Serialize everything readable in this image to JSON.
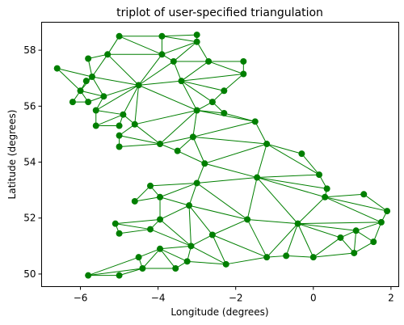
{
  "chart_data": {
    "type": "scatter",
    "title": "triplot of user-specified triangulation",
    "xlabel": "Longitude (degrees)",
    "ylabel": "Latitude (degrees)",
    "xlim": [
      -7.0,
      2.2
    ],
    "ylim": [
      49.55,
      59.0
    ],
    "xticks": [
      -6,
      -4,
      -2,
      0,
      2
    ],
    "xtick_labels": [
      "−6",
      "−4",
      "−2",
      "0",
      "2"
    ],
    "yticks": [
      50,
      52,
      54,
      56,
      58
    ],
    "ytick_labels": [
      "50",
      "52",
      "54",
      "56",
      "58"
    ],
    "grid": false,
    "colors": {
      "mesh": "#007f00"
    },
    "points": [
      {
        "x": -5.0,
        "y": 58.5
      },
      {
        "x": -3.9,
        "y": 58.5
      },
      {
        "x": -3.0,
        "y": 58.55
      },
      {
        "x": -3.0,
        "y": 58.3
      },
      {
        "x": -5.3,
        "y": 57.85
      },
      {
        "x": -3.9,
        "y": 57.85
      },
      {
        "x": -5.8,
        "y": 57.7
      },
      {
        "x": -3.6,
        "y": 57.6
      },
      {
        "x": -2.7,
        "y": 57.6
      },
      {
        "x": -1.8,
        "y": 57.6
      },
      {
        "x": -6.6,
        "y": 57.35
      },
      {
        "x": -5.7,
        "y": 57.05
      },
      {
        "x": -1.8,
        "y": 57.15
      },
      {
        "x": -3.4,
        "y": 56.9
      },
      {
        "x": -5.85,
        "y": 56.9
      },
      {
        "x": -4.5,
        "y": 56.75
      },
      {
        "x": -6.0,
        "y": 56.55
      },
      {
        "x": -2.3,
        "y": 56.55
      },
      {
        "x": -5.4,
        "y": 56.35
      },
      {
        "x": -6.2,
        "y": 56.15
      },
      {
        "x": -5.8,
        "y": 56.15
      },
      {
        "x": -2.6,
        "y": 56.15
      },
      {
        "x": -5.6,
        "y": 55.85
      },
      {
        "x": -3.0,
        "y": 55.85
      },
      {
        "x": -4.9,
        "y": 55.7
      },
      {
        "x": -2.3,
        "y": 55.75
      },
      {
        "x": -1.5,
        "y": 55.45
      },
      {
        "x": -5.6,
        "y": 55.3
      },
      {
        "x": -5.0,
        "y": 55.3
      },
      {
        "x": -4.6,
        "y": 55.35
      },
      {
        "x": -5.0,
        "y": 54.95
      },
      {
        "x": -3.1,
        "y": 54.9
      },
      {
        "x": -3.95,
        "y": 54.65
      },
      {
        "x": -1.2,
        "y": 54.65
      },
      {
        "x": -5.0,
        "y": 54.55
      },
      {
        "x": -3.5,
        "y": 54.4
      },
      {
        "x": -0.3,
        "y": 54.3
      },
      {
        "x": -2.8,
        "y": 53.95
      },
      {
        "x": 0.15,
        "y": 53.55
      },
      {
        "x": -1.45,
        "y": 53.45
      },
      {
        "x": -3.0,
        "y": 53.25
      },
      {
        "x": -4.2,
        "y": 53.15
      },
      {
        "x": 0.35,
        "y": 53.05
      },
      {
        "x": 1.9,
        "y": 52.25
      },
      {
        "x": 1.3,
        "y": 52.85
      },
      {
        "x": -3.95,
        "y": 52.75
      },
      {
        "x": 0.3,
        "y": 52.75
      },
      {
        "x": -4.6,
        "y": 52.6
      },
      {
        "x": -3.2,
        "y": 52.45
      },
      {
        "x": -3.95,
        "y": 51.95
      },
      {
        "x": -1.7,
        "y": 51.95
      },
      {
        "x": 1.75,
        "y": 51.85
      },
      {
        "x": -5.1,
        "y": 51.8
      },
      {
        "x": -0.4,
        "y": 51.8
      },
      {
        "x": 1.1,
        "y": 51.55
      },
      {
        "x": -4.2,
        "y": 51.6
      },
      {
        "x": -5.0,
        "y": 51.45
      },
      {
        "x": -2.6,
        "y": 51.4
      },
      {
        "x": 0.7,
        "y": 51.3
      },
      {
        "x": 1.55,
        "y": 51.15
      },
      {
        "x": -3.15,
        "y": 51.0
      },
      {
        "x": -3.95,
        "y": 50.9
      },
      {
        "x": 1.05,
        "y": 50.75
      },
      {
        "x": -4.5,
        "y": 50.6
      },
      {
        "x": -1.2,
        "y": 50.6
      },
      {
        "x": -0.7,
        "y": 50.65
      },
      {
        "x": 0.0,
        "y": 50.6
      },
      {
        "x": -3.25,
        "y": 50.45
      },
      {
        "x": -2.25,
        "y": 50.35
      },
      {
        "x": -4.4,
        "y": 50.2
      },
      {
        "x": -3.55,
        "y": 50.2
      },
      {
        "x": -5.8,
        "y": 49.95
      },
      {
        "x": -5.0,
        "y": 49.95
      }
    ],
    "triangles": [
      [
        0,
        1,
        5
      ],
      [
        1,
        2,
        3
      ],
      [
        1,
        3,
        5
      ],
      [
        0,
        4,
        5
      ],
      [
        4,
        6,
        11
      ],
      [
        4,
        5,
        15
      ],
      [
        4,
        11,
        15
      ],
      [
        5,
        3,
        7
      ],
      [
        5,
        7,
        15
      ],
      [
        7,
        3,
        8
      ],
      [
        7,
        8,
        13
      ],
      [
        8,
        9,
        12
      ],
      [
        8,
        12,
        13
      ],
      [
        12,
        17,
        13
      ],
      [
        17,
        21,
        13
      ],
      [
        7,
        13,
        15
      ],
      [
        10,
        11,
        16
      ],
      [
        11,
        14,
        16
      ],
      [
        11,
        18,
        15
      ],
      [
        16,
        18,
        20
      ],
      [
        16,
        20,
        19
      ],
      [
        11,
        16,
        18
      ],
      [
        18,
        22,
        15
      ],
      [
        22,
        24,
        15
      ],
      [
        22,
        27,
        24
      ],
      [
        27,
        28,
        24
      ],
      [
        24,
        29,
        15
      ],
      [
        13,
        23,
        15
      ],
      [
        21,
        23,
        13
      ],
      [
        21,
        25,
        23
      ],
      [
        23,
        29,
        15
      ],
      [
        23,
        32,
        29
      ],
      [
        23,
        31,
        32
      ],
      [
        25,
        26,
        23
      ],
      [
        26,
        31,
        23
      ],
      [
        26,
        33,
        31
      ],
      [
        30,
        32,
        34
      ],
      [
        29,
        32,
        30
      ],
      [
        31,
        35,
        32
      ],
      [
        31,
        37,
        35
      ],
      [
        31,
        33,
        37
      ],
      [
        33,
        36,
        38
      ],
      [
        33,
        38,
        39
      ],
      [
        33,
        39,
        37
      ],
      [
        37,
        39,
        40
      ],
      [
        40,
        41,
        45
      ],
      [
        40,
        45,
        48
      ],
      [
        38,
        42,
        39
      ],
      [
        42,
        46,
        39
      ],
      [
        46,
        44,
        43
      ],
      [
        46,
        43,
        51
      ],
      [
        46,
        51,
        53
      ],
      [
        39,
        46,
        53
      ],
      [
        39,
        53,
        50
      ],
      [
        39,
        50,
        40
      ],
      [
        40,
        50,
        48
      ],
      [
        41,
        47,
        45
      ],
      [
        45,
        49,
        48
      ],
      [
        48,
        50,
        57
      ],
      [
        48,
        57,
        60
      ],
      [
        48,
        60,
        49
      ],
      [
        49,
        55,
        60
      ],
      [
        52,
        56,
        55
      ],
      [
        49,
        52,
        55
      ],
      [
        50,
        53,
        64
      ],
      [
        50,
        64,
        57
      ],
      [
        53,
        65,
        64
      ],
      [
        53,
        66,
        65
      ],
      [
        53,
        58,
        66
      ],
      [
        53,
        54,
        58
      ],
      [
        51,
        54,
        53
      ],
      [
        51,
        59,
        54
      ],
      [
        54,
        59,
        62
      ],
      [
        54,
        62,
        58
      ],
      [
        58,
        62,
        66
      ],
      [
        57,
        64,
        68
      ],
      [
        57,
        68,
        60
      ],
      [
        60,
        68,
        67
      ],
      [
        60,
        67,
        61
      ],
      [
        61,
        63,
        69
      ],
      [
        61,
        69,
        70
      ],
      [
        61,
        70,
        67
      ],
      [
        63,
        71,
        69
      ],
      [
        69,
        71,
        72
      ]
    ]
  }
}
